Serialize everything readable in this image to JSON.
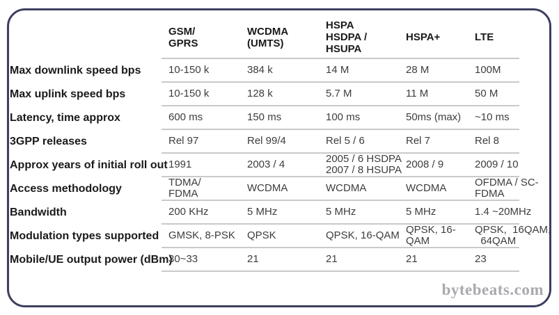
{
  "watermark": "bytebeats.com",
  "colors": {
    "frame_border": "#3e3e60",
    "row_line": "#c9c9c9",
    "label_text": "#1a1a1a",
    "data_text": "#3d3d3d",
    "watermark": "#a9a9af"
  },
  "table": {
    "corner_label": "",
    "columns": [
      "GSM/\nGPRS",
      "WCDMA\n(UMTS)",
      "HSPA\nHSDPA /\nHSUPA",
      "HSPA+",
      "LTE"
    ],
    "rows": [
      {
        "label": "Max downlink speed bps",
        "values": [
          "10-150 k",
          "384 k",
          "14 M",
          "28 M",
          "100M"
        ]
      },
      {
        "label": "Max uplink speed bps",
        "values": [
          "10-150 k",
          "128 k",
          "5.7 M",
          "11 M",
          "50 M"
        ]
      },
      {
        "label": "Latency, time approx",
        "values": [
          "600 ms",
          "150 ms",
          "100 ms",
          "50ms (max)",
          "~10 ms"
        ]
      },
      {
        "label": "3GPP releases",
        "values": [
          "Rel 97",
          "Rel 99/4",
          "Rel 5 / 6",
          "Rel 7",
          "Rel 8"
        ]
      },
      {
        "label": "Approx years of initial roll out",
        "values": [
          "1991",
          "2003 / 4",
          "2005 / 6 HSDPA\n2007 / 8 HSUPA",
          "2008 / 9",
          "2009 / 10"
        ]
      },
      {
        "label": "Access methodology",
        "values": [
          "TDMA/\nFDMA",
          "WCDMA",
          "WCDMA",
          "WCDMA",
          "OFDMA / SC-\nFDMA"
        ]
      },
      {
        "label": "Bandwidth",
        "values": [
          "200 KHz",
          "5 MHz",
          "5 MHz",
          "5 MHz",
          "1.4 ~20MHz"
        ]
      },
      {
        "label": "Modulation types supported",
        "values": [
          "GMSK, 8-PSK",
          "QPSK",
          "QPSK, 16-QAM",
          "QPSK, 16-\nQAM",
          "QPSK,  16QAM,\n  64QAM"
        ]
      },
      {
        "label": "Mobile/UE output power (dBm)",
        "values": [
          "30~33",
          "21",
          "21",
          "21",
          "23"
        ]
      }
    ]
  }
}
